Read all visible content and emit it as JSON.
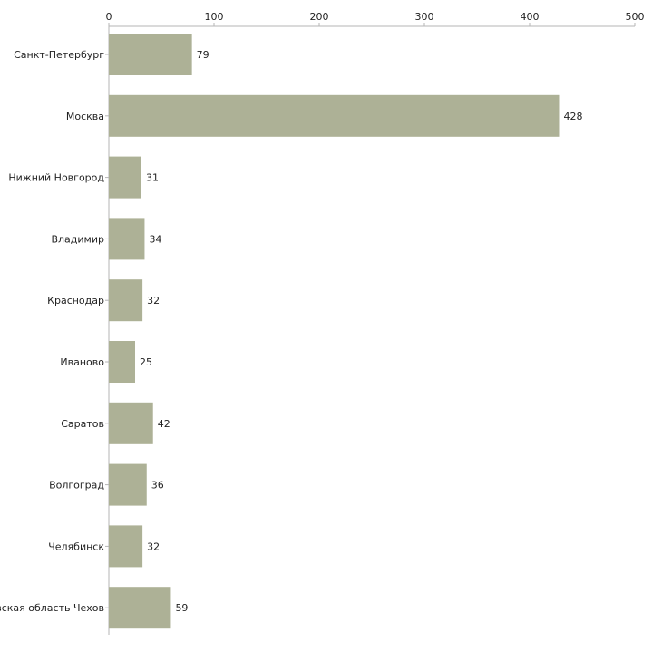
{
  "chart_data": {
    "type": "bar",
    "orientation": "horizontal",
    "title": "",
    "xlabel": "",
    "ylabel": "",
    "xlim": [
      0,
      500
    ],
    "x_ticks": [
      0,
      100,
      200,
      300,
      400,
      500
    ],
    "x_tick_labels": [
      "0",
      "100",
      "200",
      "300",
      "400",
      "500"
    ],
    "x_axis_position": "top",
    "grid": false,
    "legend": "none",
    "categories": [
      "Санкт-Петербург",
      "Москва",
      "Нижний Новгород",
      "Владимир",
      "Краснодар",
      "Иваново",
      "Саратов",
      "Волгоград",
      "Челябинск",
      "Московская область Чехов"
    ],
    "values": [
      79,
      428,
      31,
      34,
      32,
      25,
      42,
      36,
      32,
      59
    ],
    "value_labels": [
      "79",
      "428",
      "31",
      "34",
      "32",
      "25",
      "42",
      "36",
      "32",
      "59"
    ],
    "bar_color": "#adb196"
  }
}
